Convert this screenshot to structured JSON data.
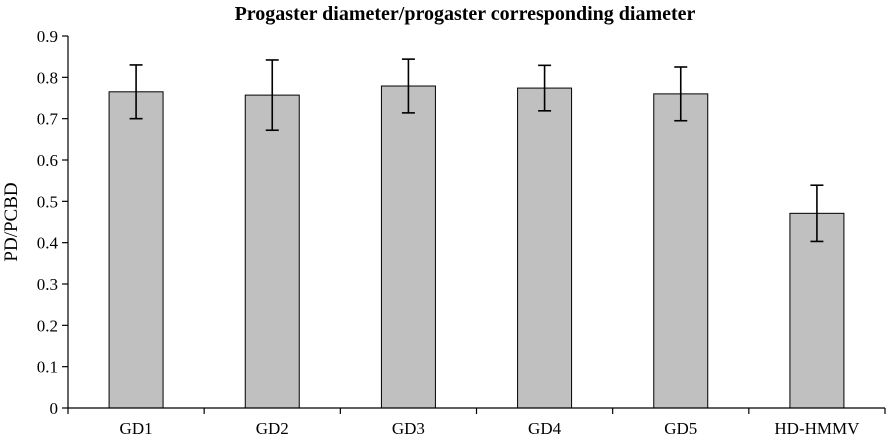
{
  "chart_data": {
    "type": "bar",
    "title": "Progaster diameter/progaster corresponding diameter",
    "xlabel": "",
    "ylabel": "PD/PCBD",
    "categories": [
      "GD1",
      "GD2",
      "GD3",
      "GD4",
      "GD5",
      "HD-HMMV"
    ],
    "values": [
      0.765,
      0.757,
      0.779,
      0.774,
      0.76,
      0.471
    ],
    "error": [
      0.065,
      0.085,
      0.065,
      0.055,
      0.065,
      0.068
    ],
    "ylim": [
      0,
      0.9
    ],
    "yticks": [
      "0",
      "0.1",
      "0.2",
      "0.3",
      "0.4",
      "0.5",
      "0.6",
      "0.7",
      "0.8",
      "0.9"
    ],
    "grid": false,
    "legend": "none",
    "colors": {
      "bar_fill": "#c0c0c0",
      "bar_stroke": "#000000",
      "axis": "#000000"
    }
  }
}
